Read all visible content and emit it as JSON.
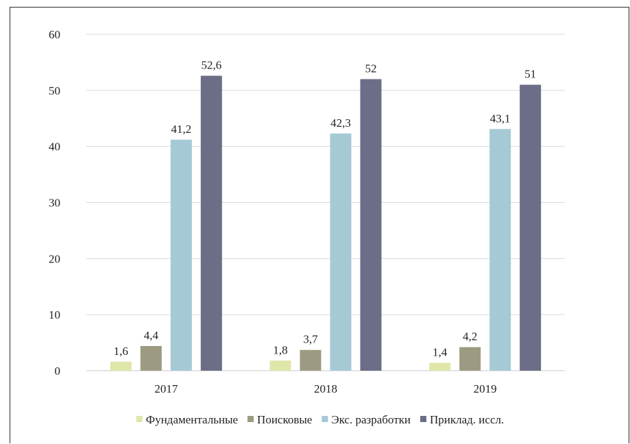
{
  "chart_data": {
    "type": "bar",
    "categories": [
      "2017",
      "2018",
      "2019"
    ],
    "series": [
      {
        "name": "Фундаментальные",
        "color": "#dfe6a8",
        "values": [
          1.6,
          1.8,
          1.4
        ],
        "labels": [
          "1,6",
          "1,8",
          "1,4"
        ]
      },
      {
        "name": "Поисковые",
        "color": "#9c9a80",
        "values": [
          4.4,
          3.7,
          4.2
        ],
        "labels": [
          "4,4",
          "3,7",
          "4,2"
        ]
      },
      {
        "name": "Экс. разработки",
        "color": "#a6c9d6",
        "values": [
          41.2,
          42.3,
          43.1
        ],
        "labels": [
          "41,2",
          "42,3",
          "43,1"
        ]
      },
      {
        "name": "Приклад. иссл.",
        "color": "#6b6e86",
        "values": [
          52.6,
          52,
          51
        ],
        "labels": [
          "52,6",
          "52",
          "51"
        ]
      }
    ],
    "ylim": [
      0,
      60
    ],
    "yticks": [
      0,
      10,
      20,
      30,
      40,
      50,
      60
    ],
    "grid": true,
    "legend_position": "bottom"
  }
}
